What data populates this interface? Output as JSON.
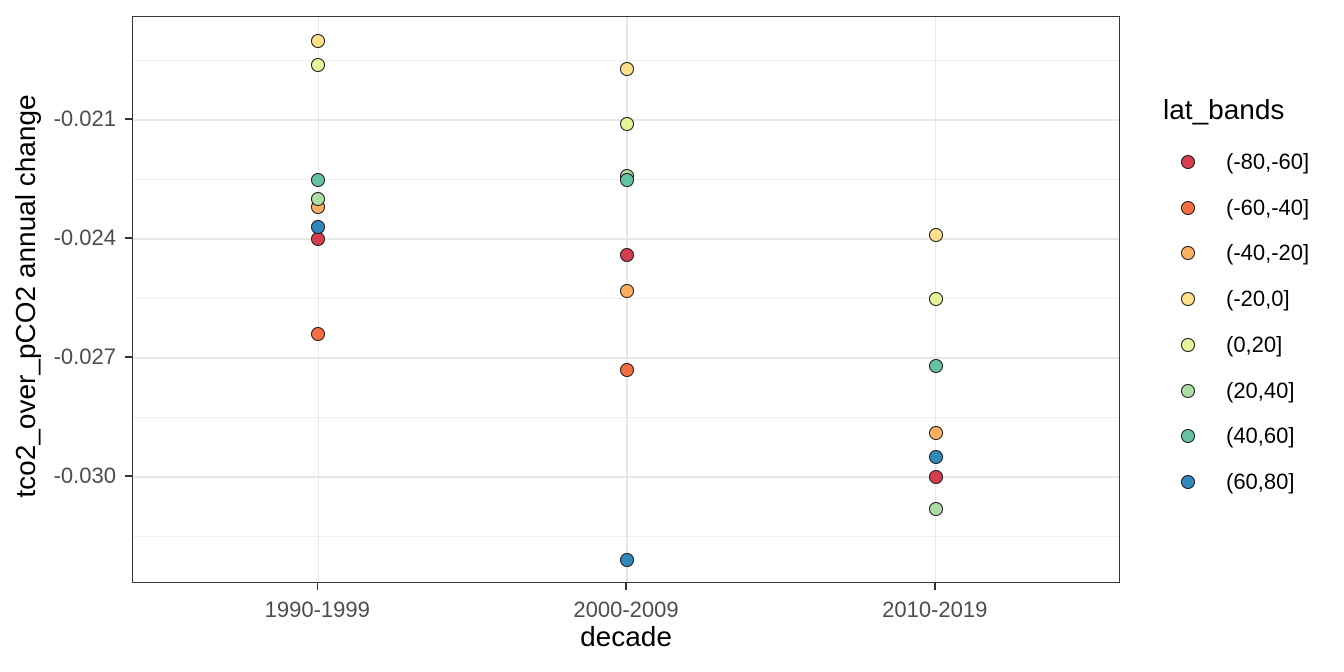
{
  "chart_data": {
    "type": "scatter",
    "xlabel": "decade",
    "ylabel": "tco2_over_pCO2 annual change",
    "legend_title": "lat_bands",
    "legend_position": "right",
    "grid": true,
    "categories": [
      "1990-1999",
      "2000-2009",
      "2010-2019"
    ],
    "y_ticks": [
      -0.021,
      -0.024,
      -0.027,
      -0.03
    ],
    "y_tick_labels": [
      "-0.021",
      "-0.024",
      "-0.027",
      "-0.030"
    ],
    "y_minor_ticks": [
      -0.0195,
      -0.0225,
      -0.0255,
      -0.0285,
      -0.0315
    ],
    "ylim": [
      -0.0327,
      -0.0184
    ],
    "series": [
      {
        "name": "(-80,-60]",
        "color": "#d53e4f",
        "values": [
          -0.024,
          -0.0244,
          -0.03
        ]
      },
      {
        "name": "(-60,-40]",
        "color": "#f46d43",
        "values": [
          -0.0264,
          -0.0273,
          null
        ]
      },
      {
        "name": "(-40,-20]",
        "color": "#fdae61",
        "values": [
          -0.0232,
          -0.0253,
          -0.0289
        ]
      },
      {
        "name": "(-20,0]",
        "color": "#fee08b",
        "values": [
          -0.019,
          -0.0197,
          -0.0239
        ]
      },
      {
        "name": "(0,20]",
        "color": "#e6f598",
        "values": [
          -0.0196,
          -0.0211,
          -0.0255
        ]
      },
      {
        "name": "(20,40]",
        "color": "#abdda4",
        "values": [
          -0.023,
          -0.0224,
          -0.0308
        ]
      },
      {
        "name": "(40,60]",
        "color": "#66c2a5",
        "values": [
          -0.0225,
          -0.0225,
          -0.0272
        ]
      },
      {
        "name": "(60,80]",
        "color": "#3288bd",
        "values": [
          -0.0237,
          -0.0321,
          -0.0295
        ]
      }
    ]
  }
}
